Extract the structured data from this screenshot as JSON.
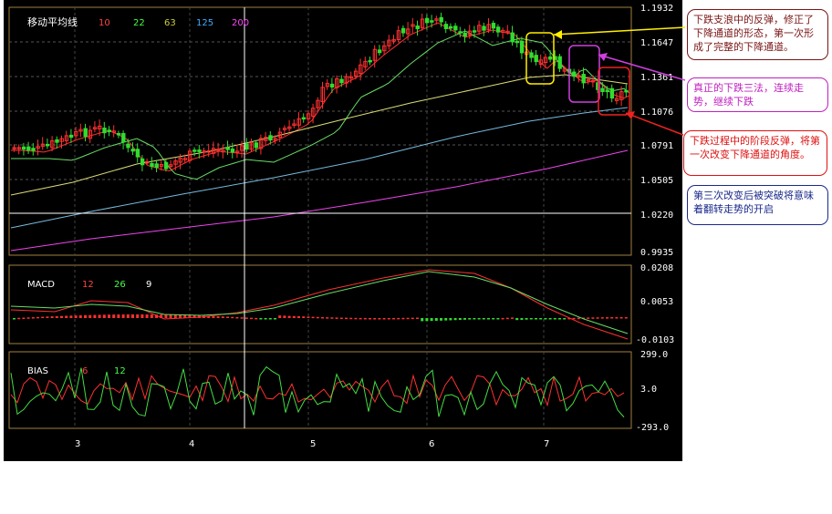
{
  "main_panel": {
    "title": "移动平均线",
    "ma_labels": [
      {
        "text": "10",
        "color": "#ff4444"
      },
      {
        "text": "22",
        "color": "#44ff44"
      },
      {
        "text": "63",
        "color": "#cccc44"
      },
      {
        "text": "125",
        "color": "#44aaff"
      },
      {
        "text": "200",
        "color": "#ff44ff"
      }
    ],
    "y_ticks": [
      "1.1932",
      "1.1647",
      "1.1361",
      "1.1076",
      "1.0791",
      "1.0505",
      "1.0220",
      "0.9935"
    ]
  },
  "macd_panel": {
    "title": "MACD",
    "params": [
      {
        "text": "12",
        "color": "#ff4444"
      },
      {
        "text": "26",
        "color": "#44ff44"
      },
      {
        "text": "9",
        "color": "#ffffff"
      }
    ],
    "y_ticks": [
      "0.0208",
      "0.0053",
      "-0.0103"
    ]
  },
  "bias_panel": {
    "title": "BIAS",
    "params": [
      {
        "text": "6",
        "color": "#ff4444"
      },
      {
        "text": "12",
        "color": "#44ff44"
      }
    ],
    "y_ticks": [
      "299.0",
      "3.0",
      "-293.0"
    ]
  },
  "x_axis": {
    "labels": [
      "3",
      "4",
      "5",
      "6",
      "7"
    ]
  },
  "annotations": [
    {
      "text": "下跌支浪中的反弹，修正了下降通道的形态，第一次形成了完整的下降通道。"
    },
    {
      "text": "真正的下跌三法，连续走势，继续下跌"
    },
    {
      "text": "下跌过程中的阶段反弹，将第一次改变下降通道的角度。"
    },
    {
      "text": "第三次改变后被突破将意味着翻转走势的开启"
    }
  ],
  "colors": {
    "background": "#000000",
    "panel_border": "#a08040",
    "up_candle": "#ff3030",
    "down_candle": "#30dd30",
    "ma10": "#ff3030",
    "ma22": "#66dd66",
    "ma63": "#dddd77",
    "ma125": "#77bbdd",
    "ma200": "#ee44ee",
    "macd_dif": "#ff3030",
    "macd_dea": "#66dd66",
    "bias6": "#ff3030",
    "bias12": "#44dd44"
  }
}
